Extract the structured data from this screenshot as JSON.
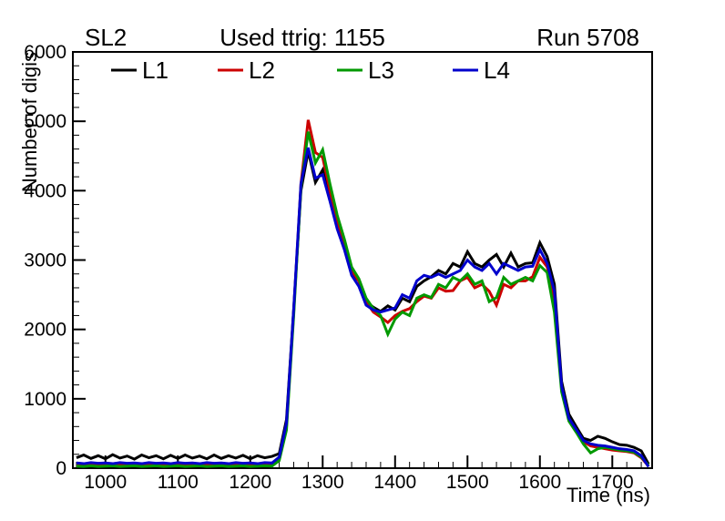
{
  "titles": {
    "left": "SL2",
    "center": "Used ttrig: 1155",
    "right": "Run 5708"
  },
  "chart_data": {
    "type": "line",
    "title": "Used ttrig: 1155",
    "xlabel": "Time (ns)",
    "ylabel": "Number of digis",
    "xlim": [
      955,
      1755
    ],
    "ylim": [
      0,
      6000
    ],
    "x_ticks": [
      1000,
      1100,
      1200,
      1300,
      1400,
      1500,
      1600,
      1700
    ],
    "x_minor_step": 20,
    "y_ticks": [
      0,
      1000,
      2000,
      3000,
      4000,
      5000,
      6000
    ],
    "y_minor_step": 200,
    "grid": false,
    "legend_position": "top-inside",
    "x": [
      960,
      970,
      980,
      990,
      1000,
      1010,
      1020,
      1030,
      1040,
      1050,
      1060,
      1070,
      1080,
      1090,
      1100,
      1110,
      1120,
      1130,
      1140,
      1150,
      1160,
      1170,
      1180,
      1190,
      1200,
      1210,
      1220,
      1230,
      1240,
      1250,
      1260,
      1270,
      1280,
      1290,
      1300,
      1310,
      1320,
      1330,
      1340,
      1350,
      1360,
      1370,
      1380,
      1390,
      1400,
      1410,
      1420,
      1430,
      1440,
      1450,
      1460,
      1470,
      1480,
      1490,
      1500,
      1510,
      1520,
      1530,
      1540,
      1550,
      1560,
      1570,
      1580,
      1590,
      1600,
      1610,
      1620,
      1630,
      1640,
      1650,
      1660,
      1670,
      1680,
      1690,
      1700,
      1710,
      1720,
      1730,
      1740,
      1750
    ],
    "series": [
      {
        "name": "L1",
        "color": "#000000",
        "values": [
          150,
          190,
          140,
          180,
          135,
          195,
          145,
          175,
          130,
          190,
          150,
          180,
          135,
          185,
          140,
          190,
          145,
          175,
          135,
          190,
          140,
          180,
          145,
          185,
          135,
          180,
          150,
          170,
          210,
          700,
          2300,
          4000,
          4570,
          4120,
          4300,
          3900,
          3500,
          3200,
          2820,
          2700,
          2400,
          2320,
          2260,
          2340,
          2280,
          2450,
          2400,
          2620,
          2700,
          2760,
          2850,
          2800,
          2950,
          2900,
          3120,
          2950,
          2900,
          3000,
          3080,
          2900,
          3100,
          2900,
          2950,
          2960,
          3250,
          3050,
          2650,
          1250,
          780,
          600,
          430,
          400,
          460,
          430,
          380,
          340,
          330,
          300,
          250,
          60
        ]
      },
      {
        "name": "L2",
        "color": "#cc0000",
        "values": [
          50,
          40,
          55,
          45,
          50,
          40,
          55,
          45,
          50,
          40,
          55,
          45,
          50,
          40,
          55,
          45,
          50,
          40,
          55,
          45,
          50,
          40,
          55,
          45,
          50,
          40,
          55,
          50,
          130,
          600,
          2250,
          4100,
          5020,
          4550,
          4480,
          4000,
          3550,
          3250,
          2850,
          2700,
          2400,
          2250,
          2180,
          2100,
          2200,
          2260,
          2300,
          2400,
          2480,
          2450,
          2600,
          2550,
          2560,
          2700,
          2750,
          2600,
          2650,
          2550,
          2350,
          2650,
          2600,
          2700,
          2700,
          2760,
          3040,
          2900,
          2450,
          1150,
          700,
          550,
          380,
          320,
          300,
          280,
          260,
          250,
          240,
          220,
          150,
          30
        ]
      },
      {
        "name": "L3",
        "color": "#009900",
        "values": [
          30,
          25,
          35,
          25,
          30,
          35,
          25,
          30,
          35,
          25,
          30,
          35,
          25,
          30,
          35,
          25,
          30,
          35,
          25,
          30,
          35,
          25,
          30,
          35,
          25,
          30,
          35,
          30,
          110,
          550,
          2200,
          4050,
          4850,
          4400,
          4590,
          4100,
          3650,
          3300,
          2900,
          2730,
          2450,
          2300,
          2200,
          1930,
          2150,
          2250,
          2200,
          2450,
          2500,
          2460,
          2650,
          2600,
          2750,
          2700,
          2800,
          2650,
          2700,
          2400,
          2460,
          2750,
          2650,
          2700,
          2750,
          2700,
          2920,
          2820,
          2250,
          1100,
          680,
          520,
          350,
          220,
          280,
          300,
          280,
          260,
          250,
          230,
          160,
          40
        ]
      },
      {
        "name": "L4",
        "color": "#0000cc",
        "values": [
          75,
          65,
          80,
          70,
          75,
          65,
          80,
          70,
          75,
          65,
          80,
          70,
          75,
          65,
          80,
          70,
          75,
          65,
          80,
          70,
          75,
          65,
          80,
          70,
          75,
          65,
          80,
          75,
          160,
          650,
          2300,
          4100,
          4620,
          4180,
          4230,
          3850,
          3450,
          3150,
          2780,
          2620,
          2350,
          2280,
          2250,
          2280,
          2310,
          2500,
          2450,
          2700,
          2780,
          2750,
          2800,
          2750,
          2800,
          2850,
          3000,
          2900,
          2850,
          2950,
          2800,
          2950,
          2900,
          2850,
          2900,
          2910,
          3150,
          2950,
          2550,
          1180,
          720,
          560,
          400,
          350,
          330,
          320,
          300,
          280,
          270,
          250,
          180,
          20
        ]
      }
    ]
  }
}
